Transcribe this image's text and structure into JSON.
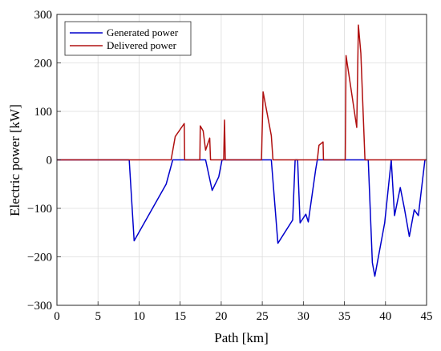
{
  "chart_data": {
    "type": "line",
    "title": "",
    "xlabel": "Path [km]",
    "ylabel": "Electric power [kW]",
    "xlim": [
      0,
      45
    ],
    "ylim": [
      -300,
      300
    ],
    "xticks": [
      0,
      5,
      10,
      15,
      20,
      25,
      30,
      35,
      40,
      45
    ],
    "yticks": [
      -300,
      -200,
      -100,
      0,
      100,
      200,
      300
    ],
    "grid": true,
    "legend_position": "top-left",
    "series": [
      {
        "name": "Generated power",
        "color": "#0000cc",
        "points": [
          [
            0,
            0
          ],
          [
            8.8,
            0
          ],
          [
            9.4,
            -167
          ],
          [
            13.3,
            -50
          ],
          [
            14.1,
            0
          ],
          [
            18.1,
            0
          ],
          [
            18.9,
            -63
          ],
          [
            19.7,
            -35
          ],
          [
            20.1,
            0
          ],
          [
            26.1,
            0
          ],
          [
            26.9,
            -172
          ],
          [
            28.7,
            -124
          ],
          [
            29.0,
            0
          ],
          [
            29.3,
            0
          ],
          [
            29.6,
            -130
          ],
          [
            30.3,
            -112
          ],
          [
            30.6,
            -128
          ],
          [
            31.5,
            -20
          ],
          [
            31.7,
            0
          ],
          [
            37.9,
            0
          ],
          [
            38.4,
            -212
          ],
          [
            38.7,
            -240
          ],
          [
            39.9,
            -130
          ],
          [
            40.7,
            0
          ],
          [
            41.1,
            -115
          ],
          [
            41.8,
            -57
          ],
          [
            42.3,
            -100
          ],
          [
            42.9,
            -158
          ],
          [
            43.5,
            -103
          ],
          [
            44.0,
            -115
          ],
          [
            44.8,
            0
          ],
          [
            45,
            0
          ]
        ]
      },
      {
        "name": "Delivered power",
        "color": "#b01010",
        "points": [
          [
            0,
            0
          ],
          [
            13.9,
            0
          ],
          [
            14.4,
            48
          ],
          [
            15.5,
            75
          ],
          [
            15.55,
            0
          ],
          [
            17.4,
            0
          ],
          [
            17.45,
            70
          ],
          [
            17.8,
            60
          ],
          [
            18.1,
            20
          ],
          [
            18.6,
            45
          ],
          [
            18.7,
            0
          ],
          [
            20.3,
            0
          ],
          [
            20.4,
            82
          ],
          [
            20.5,
            0
          ],
          [
            24.9,
            0
          ],
          [
            25.1,
            140
          ],
          [
            26.1,
            50
          ],
          [
            26.3,
            0
          ],
          [
            31.7,
            0
          ],
          [
            31.9,
            30
          ],
          [
            32.4,
            37
          ],
          [
            32.45,
            0
          ],
          [
            35.1,
            0
          ],
          [
            35.2,
            215
          ],
          [
            36.5,
            67
          ],
          [
            36.7,
            278
          ],
          [
            37.0,
            220
          ],
          [
            37.5,
            0
          ],
          [
            45,
            0
          ]
        ]
      }
    ]
  }
}
